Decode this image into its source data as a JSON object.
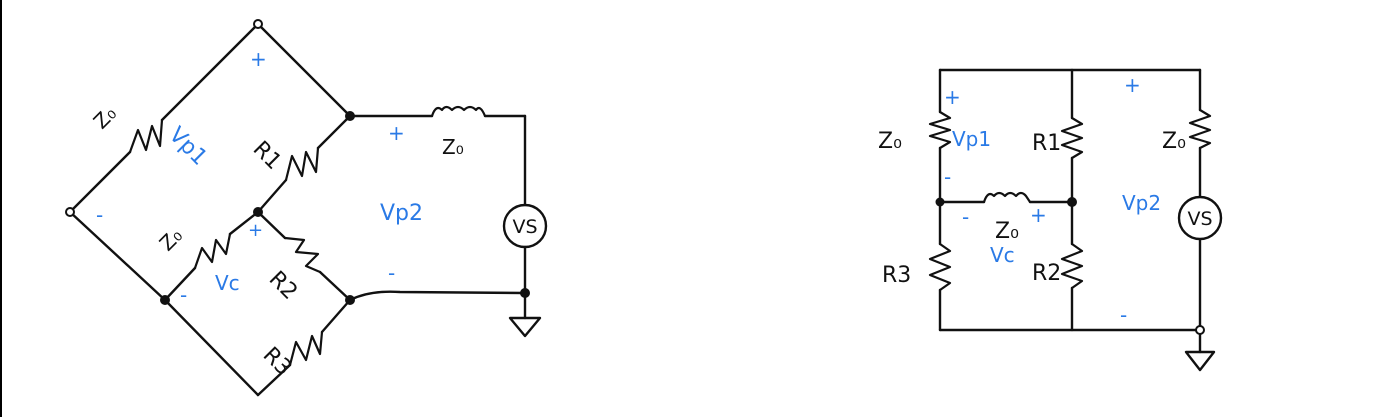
{
  "colors": {
    "ink": "#111111",
    "annotation": "#2a7ae6"
  },
  "left_circuit": {
    "labels": {
      "z0_top": "Z₀",
      "r1": "R1",
      "z0_mid": "Z₀",
      "r2": "R2",
      "r3": "R3",
      "z0_right": "Z₀",
      "vs": "VS"
    },
    "annotations": {
      "vp1": "Vp1",
      "vp2": "Vp2",
      "vc": "Vc",
      "plus_top": "+",
      "minus_left": "-",
      "plus_vp2": "+",
      "minus_vp2": "-",
      "plus_vc": "+",
      "minus_vc": "-"
    }
  },
  "right_circuit": {
    "labels": {
      "z0_left": "Z₀",
      "r1": "R1",
      "z0_right": "Z₀",
      "z0_mid": "Z₀",
      "r2": "R2",
      "r3": "R3",
      "vs": "VS"
    },
    "annotations": {
      "vp1": "Vp1",
      "vp2": "Vp2",
      "vc": "Vc",
      "plus_vp1": "+",
      "minus_vp1": "-",
      "plus_vp2": "+",
      "minus_vp2": "-",
      "plus_vc": "+",
      "minus_vc": "-"
    }
  }
}
